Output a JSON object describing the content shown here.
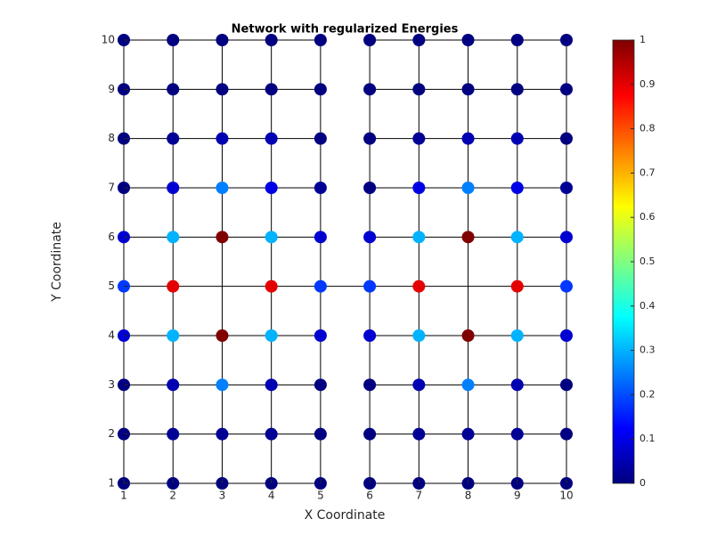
{
  "chart_data": {
    "type": "network",
    "title": "Network with regularized Energies",
    "x_label": "X Coordinate",
    "y_label": "Y Coordinate",
    "xlim": [
      1,
      10
    ],
    "ylim": [
      1,
      10
    ],
    "xticks": [
      1,
      2,
      3,
      4,
      5,
      6,
      7,
      8,
      9,
      10
    ],
    "yticks": [
      1,
      2,
      3,
      4,
      5,
      6,
      7,
      8,
      9,
      10
    ],
    "colormap": "jet",
    "clim": [
      0,
      1
    ],
    "cticks": [
      0,
      0.1,
      0.2,
      0.3,
      0.4,
      0.5,
      0.6,
      0.7,
      0.8,
      0.9,
      1
    ],
    "edge_color": "#000000",
    "edges": [
      [
        1,
        10,
        5,
        10
      ],
      [
        6,
        10,
        10,
        10
      ],
      [
        1,
        9,
        5,
        9
      ],
      [
        6,
        9,
        10,
        9
      ],
      [
        1,
        8,
        5,
        8
      ],
      [
        6,
        8,
        10,
        8
      ],
      [
        1,
        7,
        5,
        7
      ],
      [
        6,
        7,
        10,
        7
      ],
      [
        1,
        6,
        5,
        6
      ],
      [
        6,
        6,
        10,
        6
      ],
      [
        1,
        5,
        10,
        5
      ],
      [
        1,
        4,
        5,
        4
      ],
      [
        6,
        4,
        10,
        4
      ],
      [
        1,
        3,
        5,
        3
      ],
      [
        6,
        3,
        10,
        3
      ],
      [
        1,
        2,
        5,
        2
      ],
      [
        6,
        2,
        10,
        2
      ],
      [
        1,
        1,
        5,
        1
      ],
      [
        6,
        1,
        10,
        1
      ],
      [
        1,
        1,
        1,
        10
      ],
      [
        2,
        1,
        2,
        10
      ],
      [
        3,
        1,
        3,
        10
      ],
      [
        4,
        1,
        4,
        10
      ],
      [
        5,
        1,
        5,
        10
      ],
      [
        6,
        1,
        6,
        10
      ],
      [
        7,
        1,
        7,
        10
      ],
      [
        8,
        1,
        8,
        10
      ],
      [
        9,
        1,
        9,
        10
      ],
      [
        10,
        1,
        10,
        10
      ]
    ],
    "x": [
      1,
      2,
      3,
      4,
      5,
      6,
      7,
      8,
      9,
      10,
      1,
      2,
      3,
      4,
      5,
      6,
      7,
      8,
      9,
      10,
      1,
      2,
      3,
      4,
      5,
      6,
      7,
      8,
      9,
      10,
      1,
      2,
      3,
      4,
      5,
      6,
      7,
      8,
      9,
      10,
      1,
      2,
      3,
      4,
      5,
      6,
      7,
      8,
      9,
      10,
      1,
      2,
      4,
      5,
      6,
      7,
      9,
      10,
      1,
      2,
      3,
      4,
      5,
      6,
      7,
      8,
      9,
      10,
      1,
      2,
      3,
      4,
      5,
      6,
      7,
      8,
      9,
      10,
      1,
      2,
      3,
      4,
      5,
      6,
      7,
      8,
      9,
      10,
      1,
      2,
      3,
      4,
      5,
      6,
      7,
      8,
      9,
      10
    ],
    "y": [
      10,
      10,
      10,
      10,
      10,
      10,
      10,
      10,
      10,
      10,
      9,
      9,
      9,
      9,
      9,
      9,
      9,
      9,
      9,
      9,
      8,
      8,
      8,
      8,
      8,
      8,
      8,
      8,
      8,
      8,
      7,
      7,
      7,
      7,
      7,
      7,
      7,
      7,
      7,
      7,
      6,
      6,
      6,
      6,
      6,
      6,
      6,
      6,
      6,
      6,
      5,
      5,
      5,
      5,
      5,
      5,
      5,
      5,
      4,
      4,
      4,
      4,
      4,
      4,
      4,
      4,
      4,
      4,
      3,
      3,
      3,
      3,
      3,
      3,
      3,
      3,
      3,
      3,
      2,
      2,
      2,
      2,
      2,
      2,
      2,
      2,
      2,
      2,
      1,
      1,
      1,
      1,
      1,
      1,
      1,
      1,
      1,
      1
    ],
    "values": [
      0,
      0,
      0,
      0,
      0,
      0,
      0,
      0,
      0,
      0,
      0,
      0,
      0,
      0,
      0,
      0,
      0,
      0,
      0,
      0,
      0,
      0.02,
      0.05,
      0.05,
      0,
      0,
      0.02,
      0.05,
      0.05,
      0,
      0,
      0.08,
      0.25,
      0.1,
      0.02,
      0,
      0.1,
      0.25,
      0.1,
      0.02,
      0.08,
      0.3,
      1,
      0.3,
      0.08,
      0.08,
      0.3,
      1,
      0.3,
      0.08,
      0.18,
      0.9,
      0.9,
      0.18,
      0.18,
      0.9,
      0.9,
      0.18,
      0.08,
      0.3,
      1,
      0.3,
      0.08,
      0.08,
      0.3,
      1,
      0.3,
      0.08,
      0,
      0.05,
      0.25,
      0.05,
      0,
      0,
      0.05,
      0.25,
      0.05,
      0,
      0,
      0.02,
      0.02,
      0.02,
      0,
      0,
      0.02,
      0.02,
      0.02,
      0,
      0,
      0,
      0,
      0,
      0,
      0,
      0,
      0,
      0,
      0
    ]
  }
}
